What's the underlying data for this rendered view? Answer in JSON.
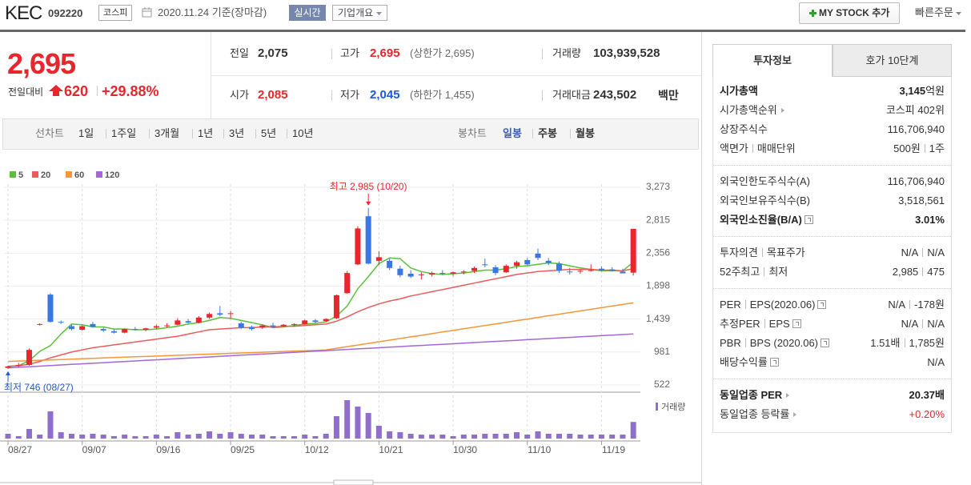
{
  "header": {
    "name": "KEC",
    "code": "092220",
    "market": "코스피",
    "date": "2020.11.24",
    "basis": "기준(장마감)",
    "realtime": "실시간",
    "overview": "기업개요",
    "mystock": "MY STOCK 추가",
    "quick_order": "빠른주문"
  },
  "quote": {
    "price": "2,695",
    "change_label": "전일대비",
    "change": "620",
    "rate": "+29.88%"
  },
  "summary": [
    [
      {
        "label": "전일",
        "value": "2,075"
      },
      {
        "label": "고가",
        "value": "2,695",
        "note": "(상한가 2,695)"
      },
      {
        "label": "거래량",
        "value": "103,939,528"
      }
    ],
    [
      {
        "label": "시가",
        "value": "2,085"
      },
      {
        "label": "저가",
        "value": "2,045",
        "note": "(하한가 1,455)"
      },
      {
        "label": "거래대금",
        "value": "243,502",
        "unit": "백만"
      }
    ]
  ],
  "chart_tabs": {
    "line_label": "선차트",
    "line": [
      "1일",
      "1주일",
      "3개월",
      "1년",
      "3년",
      "5년",
      "10년"
    ],
    "candle_label": "봉차트",
    "candle": [
      "일봉",
      "주봉",
      "월봉"
    ]
  },
  "chart_data": {
    "type": "candlestick",
    "categories": [
      "08/27",
      null,
      null,
      null,
      null,
      null,
      null,
      "09/07",
      null,
      null,
      null,
      null,
      null,
      null,
      "09/16",
      null,
      null,
      null,
      null,
      null,
      null,
      "09/25",
      null,
      null,
      null,
      null,
      null,
      null,
      "10/12",
      null,
      null,
      null,
      null,
      null,
      null,
      "10/21",
      null,
      null,
      null,
      null,
      null,
      null,
      "10/30",
      null,
      null,
      null,
      null,
      null,
      null,
      "11/10",
      null,
      null,
      null,
      null,
      null,
      null,
      "11/19",
      null,
      null,
      null
    ],
    "open": [
      760,
      790,
      800,
      1360,
      1780,
      1400,
      1340,
      1290,
      1370,
      1300,
      1270,
      1250,
      1300,
      1290,
      1320,
      1340,
      1360,
      1410,
      1390,
      1460,
      1520,
      1510,
      1380,
      1330,
      1320,
      1350,
      1340,
      1360,
      1370,
      1420,
      1410,
      1450,
      1800,
      2200,
      2870,
      2250,
      2250,
      2140,
      2070,
      2050,
      2060,
      2080,
      2070,
      2090,
      2110,
      2200,
      2160,
      2090,
      2180,
      2260,
      2350,
      2250,
      2210,
      2100,
      2100,
      2120,
      2140,
      2130,
      2100,
      2085
    ],
    "high": [
      790,
      830,
      1030,
      1380,
      1800,
      1420,
      1360,
      1350,
      1400,
      1320,
      1300,
      1310,
      1330,
      1320,
      1360,
      1380,
      1450,
      1440,
      1480,
      1530,
      1620,
      1550,
      1400,
      1350,
      1360,
      1390,
      1370,
      1380,
      1430,
      1440,
      1450,
      1780,
      2110,
      2730,
      2985,
      2380,
      2280,
      2180,
      2120,
      2090,
      2100,
      2120,
      2100,
      2120,
      2170,
      2280,
      2190,
      2200,
      2250,
      2290,
      2420,
      2290,
      2240,
      2150,
      2130,
      2200,
      2170,
      2160,
      2140,
      2695
    ],
    "low": [
      746,
      770,
      790,
      1350,
      1390,
      1370,
      1280,
      1280,
      1320,
      1260,
      1240,
      1240,
      1280,
      1270,
      1300,
      1320,
      1350,
      1380,
      1380,
      1440,
      1480,
      1440,
      1300,
      1280,
      1300,
      1320,
      1330,
      1340,
      1360,
      1380,
      1400,
      1440,
      1790,
      2190,
      2200,
      2190,
      2120,
      2020,
      2010,
      1990,
      2030,
      2050,
      2040,
      2060,
      2080,
      2160,
      2050,
      2080,
      2140,
      2180,
      2260,
      2190,
      2080,
      2060,
      2070,
      2100,
      2100,
      2100,
      2080,
      2045
    ],
    "close": [
      780,
      800,
      1010,
      1370,
      1400,
      1390,
      1300,
      1340,
      1330,
      1280,
      1250,
      1300,
      1290,
      1310,
      1340,
      1350,
      1420,
      1390,
      1460,
      1510,
      1500,
      1520,
      1320,
      1300,
      1350,
      1330,
      1360,
      1370,
      1420,
      1400,
      1440,
      1770,
      2080,
      2700,
      2210,
      2300,
      2150,
      2050,
      2030,
      2060,
      2080,
      2070,
      2090,
      2100,
      2150,
      2190,
      2080,
      2180,
      2230,
      2200,
      2290,
      2220,
      2110,
      2090,
      2110,
      2120,
      2120,
      2110,
      2075,
      2695
    ],
    "up_color": "#e8262d",
    "down_color": "#3b77e0",
    "moving_averages": [
      {
        "name": "5",
        "color": "#5cbf3c",
        "values": [
          780,
          790,
          860,
          990,
          1070,
          1230,
          1370,
          1360,
          1330,
          1330,
          1300,
          1300,
          1290,
          1290,
          1300,
          1320,
          1340,
          1370,
          1390,
          1420,
          1460,
          1450,
          1420,
          1390,
          1360,
          1320,
          1330,
          1350,
          1370,
          1380,
          1400,
          1480,
          1620,
          1860,
          2030,
          2210,
          2290,
          2280,
          2150,
          2100,
          2070,
          2060,
          2070,
          2080,
          2100,
          2120,
          2120,
          2140,
          2170,
          2180,
          2200,
          2220,
          2210,
          2180,
          2150,
          2130,
          2110,
          2110,
          2110,
          2230
        ]
      },
      {
        "name": "20",
        "color": "#ec5a5a",
        "values": [
          780,
          790,
          810,
          850,
          900,
          940,
          980,
          1010,
          1040,
          1060,
          1080,
          1100,
          1120,
          1140,
          1160,
          1180,
          1200,
          1230,
          1260,
          1290,
          1300,
          1310,
          1320,
          1320,
          1330,
          1330,
          1340,
          1340,
          1350,
          1360,
          1370,
          1410,
          1470,
          1540,
          1600,
          1650,
          1690,
          1720,
          1760,
          1790,
          1820,
          1850,
          1880,
          1910,
          1940,
          1970,
          2000,
          2030,
          2060,
          2080,
          2100,
          2110,
          2120,
          2130,
          2130,
          2130,
          2120,
          2120,
          2110,
          2140
        ]
      },
      {
        "name": "60",
        "color": "#f6963a",
        "values": [
          850,
          855,
          860,
          866,
          871,
          876,
          882,
          887,
          892,
          898,
          903,
          908,
          914,
          919,
          924,
          930,
          935,
          940,
          946,
          951,
          956,
          962,
          967,
          972,
          978,
          983,
          988,
          994,
          999,
          1004,
          1010,
          1033,
          1055,
          1078,
          1100,
          1123,
          1146,
          1168,
          1191,
          1213,
          1236,
          1259,
          1281,
          1304,
          1326,
          1349,
          1372,
          1394,
          1417,
          1439,
          1462,
          1485,
          1507,
          1530,
          1552,
          1575,
          1598,
          1620,
          1643,
          1665
        ]
      },
      {
        "name": "120",
        "color": "#a468d6",
        "values": [
          760,
          768,
          776,
          784,
          792,
          800,
          808,
          816,
          824,
          832,
          840,
          848,
          856,
          864,
          872,
          880,
          888,
          896,
          904,
          912,
          920,
          928,
          936,
          944,
          952,
          960,
          968,
          976,
          984,
          992,
          1000,
          1008,
          1016,
          1024,
          1032,
          1040,
          1048,
          1056,
          1064,
          1072,
          1080,
          1088,
          1096,
          1104,
          1112,
          1120,
          1128,
          1136,
          1144,
          1152,
          1160,
          1168,
          1176,
          1184,
          1192,
          1200,
          1208,
          1216,
          1224,
          1232
        ]
      }
    ],
    "volume": {
      "name": "거래량",
      "color": "#8f6fca",
      "values": [
        30,
        15,
        60,
        25,
        170,
        40,
        30,
        25,
        30,
        25,
        15,
        25,
        15,
        15,
        25,
        15,
        40,
        25,
        30,
        45,
        30,
        40,
        30,
        25,
        25,
        15,
        15,
        15,
        25,
        15,
        30,
        140,
        240,
        200,
        160,
        80,
        45,
        40,
        30,
        25,
        25,
        25,
        15,
        25,
        25,
        30,
        30,
        30,
        40,
        25,
        45,
        30,
        30,
        30,
        25,
        25,
        25,
        25,
        25,
        104
      ]
    },
    "volume_ylim": [
      0,
      250
    ],
    "ylim": [
      522,
      3273
    ],
    "yticks": [
      {
        "value": 3273,
        "label": "3,273"
      },
      {
        "value": 2815,
        "label": "2,815"
      },
      {
        "value": 2356,
        "label": "2,356"
      },
      {
        "value": 1898,
        "label": "1,898"
      },
      {
        "value": 1439,
        "label": "1,439"
      },
      981,
      522
    ],
    "grid": true,
    "annotations": {
      "high": "최고 2,985 (10/20)",
      "low": "최저 746 (08/27)"
    }
  },
  "sidebar": {
    "tabs": [
      "투자정보",
      "호가 10단계"
    ],
    "sections": [
      [
        {
          "label": "시가총액",
          "value": "3,145",
          "unit": "억원"
        },
        {
          "label": "시가총액순위",
          "value": "코스피 402위"
        },
        {
          "label": "상장주식수",
          "value": "116,706,940"
        },
        {
          "label": "액면가",
          "label2": "매매단위",
          "value": "500원",
          "value2": "1주"
        }
      ],
      [
        {
          "label": "외국인한도주식수(A)",
          "value": "116,706,940"
        },
        {
          "label": "외국인보유주식수(B)",
          "value": "3,518,561"
        },
        {
          "label": "외국인소진율(B/A)",
          "value": "3.01%"
        }
      ],
      [
        {
          "label": "투자의견",
          "label2": "목표주가",
          "value": "N/A",
          "value2": "N/A"
        },
        {
          "label": "52주최고",
          "label2": "최저",
          "value": "2,985",
          "value2": "475"
        }
      ],
      [
        {
          "label": "PER",
          "label2": "EPS(2020.06)",
          "value": "N/A",
          "value2": "-178원"
        },
        {
          "label": "추정PER",
          "label2": "EPS",
          "value": "N/A",
          "value2": "N/A"
        },
        {
          "label": "PBR",
          "label2": "BPS (2020.06)",
          "value": "1.51배",
          "value2": "1,785원"
        },
        {
          "label": "배당수익률",
          "value": "N/A"
        }
      ],
      [
        {
          "label": "동일업종 PER",
          "value": "20.37배"
        },
        {
          "label": "동일업종 등락률",
          "value": "+0.20%"
        }
      ]
    ]
  }
}
